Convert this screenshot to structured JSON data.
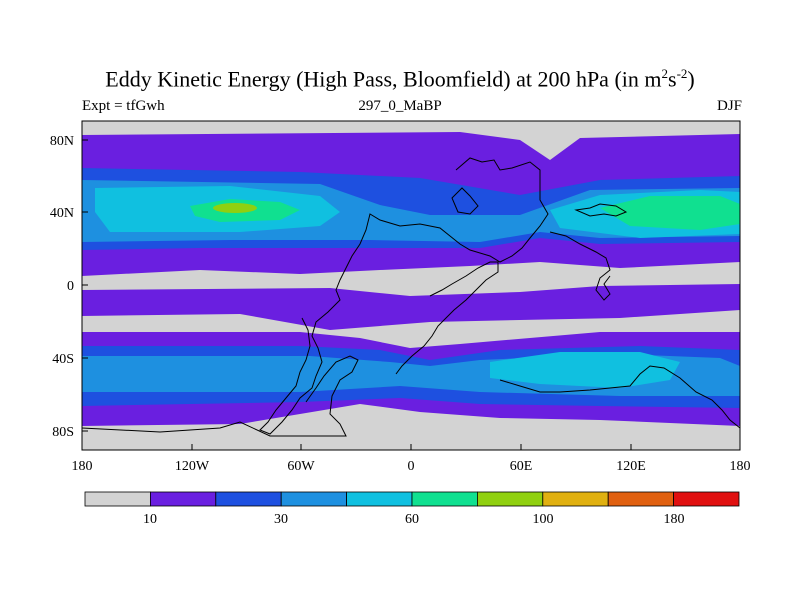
{
  "title_main": "Eddy Kinetic Energy (High Pass, Bloomfield) at 200 hPa (in m",
  "title_sup1": "2",
  "title_mid": "s",
  "title_sup2": "-2",
  "title_end": ")",
  "left_label": "Expt = tfGwh",
  "center_label": "297_0_MaBP",
  "right_label": "DJF",
  "y_ticks": [
    "80N",
    "40N",
    "0",
    "40S",
    "80S"
  ],
  "x_ticks": [
    "180",
    "120W",
    "60W",
    "0",
    "60E",
    "120E",
    "180"
  ],
  "colorbar": {
    "colors": [
      "#d3d3d3",
      "#6a1fe0",
      "#1e50e0",
      "#1e90e0",
      "#10c0e0",
      "#10e090",
      "#90d010",
      "#e0b010",
      "#e06010",
      "#e01010"
    ],
    "labels": [
      "10",
      "30",
      "60",
      "100",
      "180"
    ]
  },
  "map_colors": {
    "ocean_bg": "#d3d3d3",
    "level1": "#6a1fe0",
    "level2": "#1e50e0",
    "level3": "#1e90e0",
    "level4": "#10c0e0",
    "level5": "#10e090",
    "level6": "#90d010"
  }
}
